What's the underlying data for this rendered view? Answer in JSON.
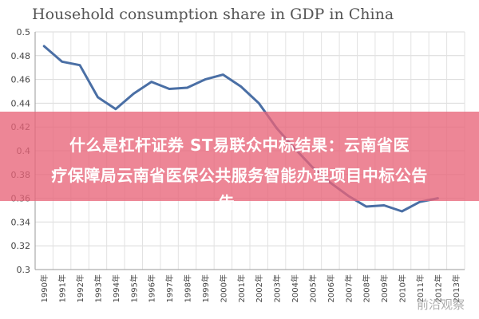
{
  "chart_data": {
    "type": "line",
    "title": "Household consumption share in GDP in China",
    "xlabel": "",
    "ylabel": "",
    "ylim": [
      0.3,
      0.5
    ],
    "yticks": [
      "0.3",
      "0.32",
      "0.34",
      "0.36",
      "0.38",
      "0.4",
      "0.42",
      "0.44",
      "0.46",
      "0.48",
      "0.5"
    ],
    "categories": [
      "1990年",
      "1991年",
      "1992年",
      "1993年",
      "1994年",
      "1995年",
      "1996年",
      "1997年",
      "1998年",
      "1999年",
      "2000年",
      "2001年",
      "2002年",
      "2003年",
      "2004年",
      "2005年",
      "2006年",
      "2007年",
      "2008年",
      "2009年",
      "2010年",
      "2011年",
      "2012年",
      "2013年"
    ],
    "series": [
      {
        "values": [
          0.488,
          0.475,
          0.472,
          0.445,
          0.435,
          0.448,
          0.458,
          0.452,
          0.453,
          0.46,
          0.464,
          0.454,
          0.44,
          0.419,
          0.402,
          0.386,
          0.373,
          0.362,
          0.353,
          0.354,
          0.349,
          0.357,
          0.36,
          null
        ]
      }
    ],
    "grid": true,
    "line_color": "#4a6fa5"
  },
  "overlay": {
    "line1": "什么是杠杆证券 ST易联众中标结果：云南省医",
    "line2": "疗保障局云南省医保公共服务智能办理项目中标公告",
    "line3": "告"
  },
  "watermark": "前沿观察"
}
